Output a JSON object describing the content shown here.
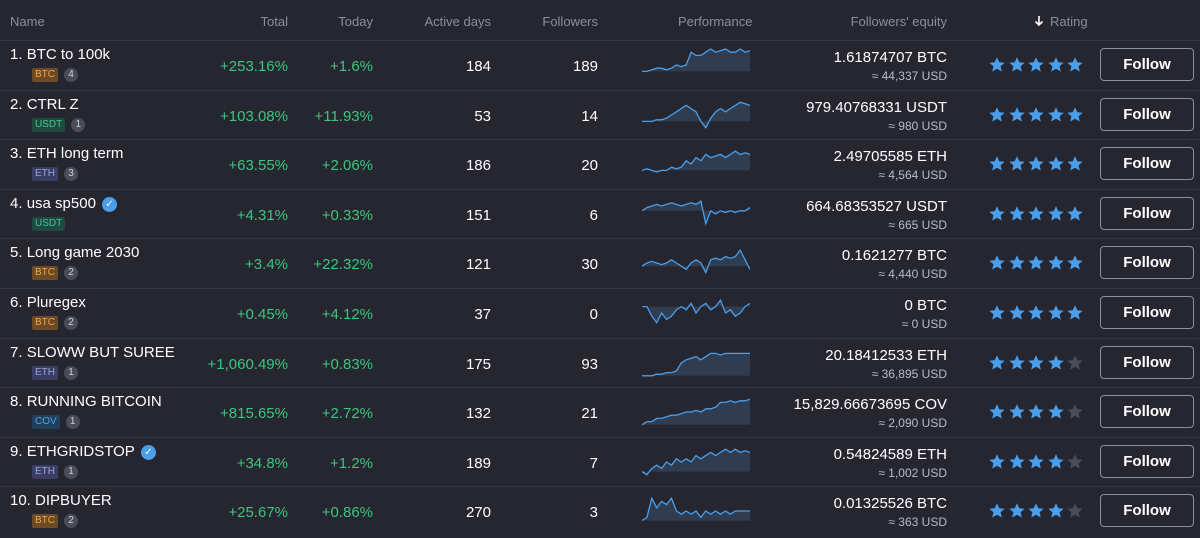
{
  "header": {
    "name": "Name",
    "total": "Total",
    "today": "Today",
    "active_days": "Active days",
    "followers": "Followers",
    "performance": "Performance",
    "followers_equity": "Followers' equity",
    "rating": "Rating",
    "rating_sort_icon": "arrow-down-icon"
  },
  "colors": {
    "background": "#252630",
    "positive": "#3ec47c",
    "star_active": "#4a9eea",
    "star_inactive": "#4a4c58",
    "sparkline": "#4a9eea"
  },
  "follow_label": "Follow",
  "rows": [
    {
      "rank": "1.",
      "name": "BTC to 100k",
      "verified": false,
      "coin": "BTC",
      "coin_class": "btc",
      "count": "4",
      "total": "+253.16%",
      "today": "+1.6%",
      "active_days": "184",
      "followers": "189",
      "equity": "1.61874707 BTC",
      "equity_usd": "≈ 44,337 USD",
      "rating": 5,
      "performance": [
        3,
        3,
        3.5,
        4,
        4,
        3.5,
        4,
        5,
        4.5,
        5,
        9,
        8,
        8,
        9,
        10,
        9,
        9.5,
        10,
        9,
        9,
        10,
        9,
        9.5
      ]
    },
    {
      "rank": "2.",
      "name": "CTRL Z",
      "verified": false,
      "coin": "USDT",
      "coin_class": "usdt",
      "count": "1",
      "total": "+103.08%",
      "today": "+11.93%",
      "active_days": "53",
      "followers": "14",
      "equity": "979.40768331 USDT",
      "equity_usd": "≈ 980 USD",
      "rating": 5,
      "performance": [
        3,
        3,
        3,
        3.5,
        3.5,
        4,
        5,
        6,
        7,
        8,
        7,
        6,
        3,
        1,
        4,
        6,
        7,
        6,
        7,
        8,
        9,
        8.5,
        8
      ]
    },
    {
      "rank": "3.",
      "name": "ETH long term",
      "verified": false,
      "coin": "ETH",
      "coin_class": "eth",
      "count": "3",
      "total": "+63.55%",
      "today": "+2.06%",
      "active_days": "186",
      "followers": "20",
      "equity": "2.49705585 ETH",
      "equity_usd": "≈ 4,564 USD",
      "rating": 5,
      "performance": [
        3,
        3.5,
        3,
        2.5,
        3,
        3,
        4,
        3.5,
        4,
        6,
        5,
        7,
        6,
        8,
        7,
        7.5,
        8,
        7,
        8,
        9,
        8,
        8.5,
        8
      ]
    },
    {
      "rank": "4.",
      "name": "usa sp500",
      "verified": true,
      "coin": "USDT",
      "coin_class": "usdt",
      "count": "",
      "total": "+4.31%",
      "today": "+0.33%",
      "active_days": "151",
      "followers": "6",
      "equity": "664.68353527 USDT",
      "equity_usd": "≈ 665 USD",
      "rating": 5,
      "performance": [
        6,
        7,
        7.5,
        8,
        7.5,
        8,
        8.5,
        8,
        7.5,
        8,
        8.5,
        8,
        9,
        2,
        6,
        5,
        6,
        5.5,
        6,
        5.5,
        6,
        6,
        7
      ]
    },
    {
      "rank": "5.",
      "name": "Long game 2030",
      "verified": false,
      "coin": "BTC",
      "coin_class": "btc",
      "count": "2",
      "total": "+3.4%",
      "today": "+22.32%",
      "active_days": "121",
      "followers": "30",
      "equity": "0.1621277 BTC",
      "equity_usd": "≈ 4,440 USD",
      "rating": 5,
      "performance": [
        4,
        5,
        5.5,
        5,
        4.5,
        5,
        6,
        5,
        4,
        3,
        5,
        6,
        5,
        2,
        6,
        6.5,
        6,
        7,
        6.5,
        7,
        9,
        6,
        3
      ]
    },
    {
      "rank": "6.",
      "name": "Pluregex",
      "verified": false,
      "coin": "BTC",
      "coin_class": "btc",
      "count": "2",
      "total": "+0.45%",
      "today": "+4.12%",
      "active_days": "37",
      "followers": "0",
      "equity": "0 BTC",
      "equity_usd": "≈ 0 USD",
      "rating": 5,
      "performance": [
        7,
        7,
        4,
        2,
        5,
        3,
        4,
        6,
        7,
        6,
        8,
        5,
        7,
        8,
        6,
        7,
        9,
        5,
        6,
        4,
        5,
        7,
        8
      ]
    },
    {
      "rank": "7.",
      "name": "SLOWW BUT SUREE",
      "verified": false,
      "coin": "ETH",
      "coin_class": "eth",
      "count": "1",
      "total": "+1,060.49%",
      "today": "+0.83%",
      "active_days": "175",
      "followers": "93",
      "equity": "20.18412533 ETH",
      "equity_usd": "≈ 36,895 USD",
      "rating": 4,
      "performance": [
        1,
        1,
        1,
        1.5,
        1.5,
        2,
        2,
        2.5,
        5,
        6,
        6.5,
        7,
        6,
        7,
        8,
        8,
        7.5,
        8,
        8,
        8,
        8,
        8,
        8
      ]
    },
    {
      "rank": "8.",
      "name": "RUNNING BITCOIN",
      "verified": false,
      "coin": "COV",
      "coin_class": "cov",
      "count": "1",
      "total": "+815.65%",
      "today": "+2.72%",
      "active_days": "132",
      "followers": "21",
      "equity": "15,829.66673695 COV",
      "equity_usd": "≈ 2,090 USD",
      "rating": 4,
      "performance": [
        1,
        2,
        2,
        3,
        3,
        3.5,
        4,
        4,
        4.5,
        5,
        5,
        5.5,
        5,
        6,
        6,
        6.5,
        8,
        8,
        8.5,
        8,
        8.5,
        8.5,
        9
      ]
    },
    {
      "rank": "9.",
      "name": "ETHGRIDSTOP",
      "verified": true,
      "coin": "ETH",
      "coin_class": "eth",
      "count": "1",
      "total": "+34.8%",
      "today": "+1.2%",
      "active_days": "189",
      "followers": "7",
      "equity": "0.54824589 ETH",
      "equity_usd": "≈ 1,002 USD",
      "rating": 4,
      "performance": [
        2,
        1,
        3,
        4,
        3,
        5,
        4,
        6,
        5,
        6,
        5,
        7,
        6,
        7,
        8,
        7,
        8,
        9,
        8,
        9,
        8,
        8.5,
        8
      ]
    },
    {
      "rank": "10.",
      "name": "DIPBUYER",
      "verified": false,
      "coin": "BTC",
      "coin_class": "btc",
      "count": "2",
      "total": "+25.67%",
      "today": "+0.86%",
      "active_days": "270",
      "followers": "3",
      "equity": "0.01325526 BTC",
      "equity_usd": "≈ 363 USD",
      "rating": 4,
      "performance": [
        2,
        3,
        9,
        6,
        8,
        7,
        9,
        5,
        4,
        5,
        4,
        5,
        3,
        5,
        4,
        5,
        4,
        5,
        4,
        5,
        5,
        5,
        5
      ]
    }
  ]
}
